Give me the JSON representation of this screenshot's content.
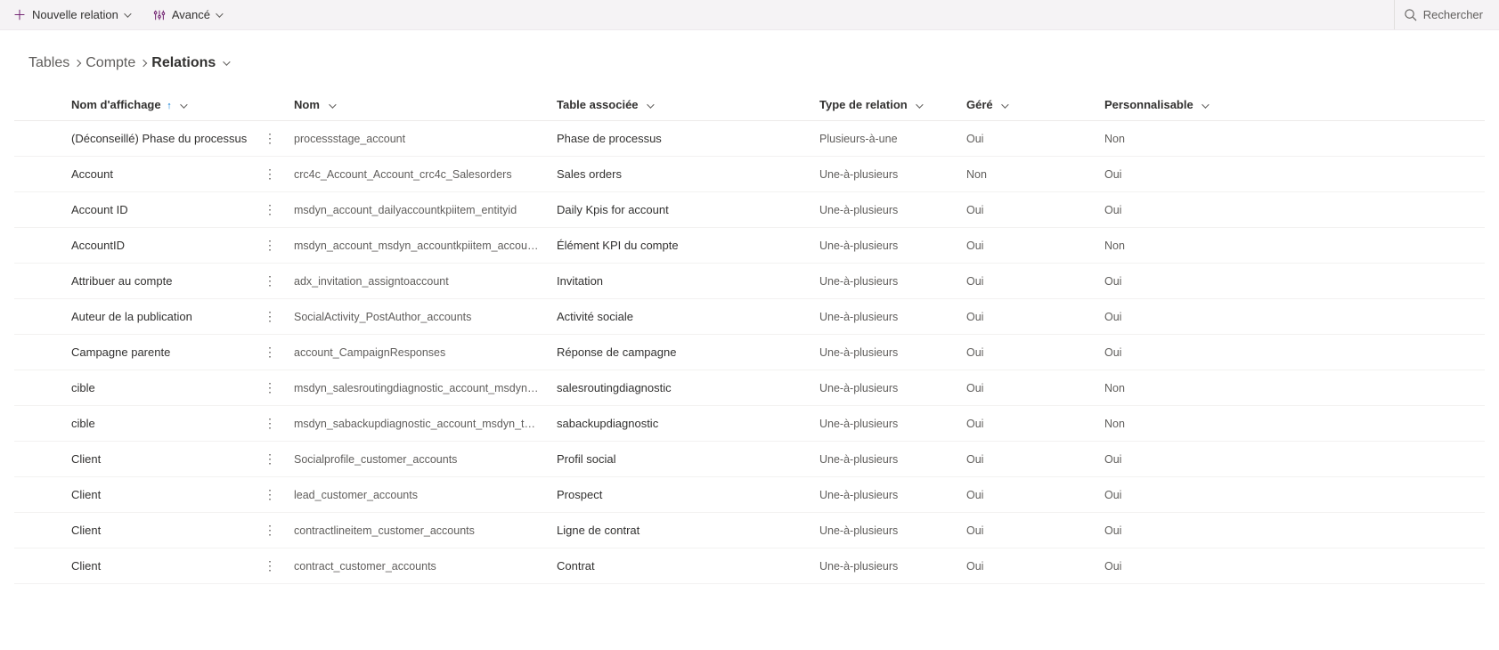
{
  "toolbar": {
    "new_relation": "Nouvelle relation",
    "advanced": "Avancé",
    "search": "Rechercher"
  },
  "breadcrumbs": {
    "root": "Tables",
    "entity": "Compte",
    "current": "Relations"
  },
  "columns": {
    "display_name": "Nom d'affichage",
    "name": "Nom",
    "related_table": "Table associée",
    "relation_type": "Type de relation",
    "managed": "Géré",
    "customizable": "Personnalisable"
  },
  "rows": [
    {
      "display": "(Déconseillé) Phase du processus",
      "name": "processstage_account",
      "related": "Phase de processus",
      "type": "Plusieurs-à-une",
      "managed": "Oui",
      "cust": "Non"
    },
    {
      "display": "Account",
      "name": "crc4c_Account_Account_crc4c_Salesorders",
      "related": "Sales orders",
      "type": "Une-à-plusieurs",
      "managed": "Non",
      "cust": "Oui"
    },
    {
      "display": "Account ID",
      "name": "msdyn_account_dailyaccountkpiitem_entityid",
      "related": "Daily Kpis for account",
      "type": "Une-à-plusieurs",
      "managed": "Oui",
      "cust": "Oui"
    },
    {
      "display": "AccountID",
      "name": "msdyn_account_msdyn_accountkpiitem_accountid",
      "related": "Élément KPI du compte",
      "type": "Une-à-plusieurs",
      "managed": "Oui",
      "cust": "Non"
    },
    {
      "display": "Attribuer au compte",
      "name": "adx_invitation_assigntoaccount",
      "related": "Invitation",
      "type": "Une-à-plusieurs",
      "managed": "Oui",
      "cust": "Oui"
    },
    {
      "display": "Auteur de la publication",
      "name": "SocialActivity_PostAuthor_accounts",
      "related": "Activité sociale",
      "type": "Une-à-plusieurs",
      "managed": "Oui",
      "cust": "Oui"
    },
    {
      "display": "Campagne parente",
      "name": "account_CampaignResponses",
      "related": "Réponse de campagne",
      "type": "Une-à-plusieurs",
      "managed": "Oui",
      "cust": "Oui"
    },
    {
      "display": "cible",
      "name": "msdyn_salesroutingdiagnostic_account_msdyn_target",
      "related": "salesroutingdiagnostic",
      "type": "Une-à-plusieurs",
      "managed": "Oui",
      "cust": "Non"
    },
    {
      "display": "cible",
      "name": "msdyn_sabackupdiagnostic_account_msdyn_target",
      "related": "sabackupdiagnostic",
      "type": "Une-à-plusieurs",
      "managed": "Oui",
      "cust": "Non"
    },
    {
      "display": "Client",
      "name": "Socialprofile_customer_accounts",
      "related": "Profil social",
      "type": "Une-à-plusieurs",
      "managed": "Oui",
      "cust": "Oui"
    },
    {
      "display": "Client",
      "name": "lead_customer_accounts",
      "related": "Prospect",
      "type": "Une-à-plusieurs",
      "managed": "Oui",
      "cust": "Oui"
    },
    {
      "display": "Client",
      "name": "contractlineitem_customer_accounts",
      "related": "Ligne de contrat",
      "type": "Une-à-plusieurs",
      "managed": "Oui",
      "cust": "Oui"
    },
    {
      "display": "Client",
      "name": "contract_customer_accounts",
      "related": "Contrat",
      "type": "Une-à-plusieurs",
      "managed": "Oui",
      "cust": "Oui"
    }
  ]
}
